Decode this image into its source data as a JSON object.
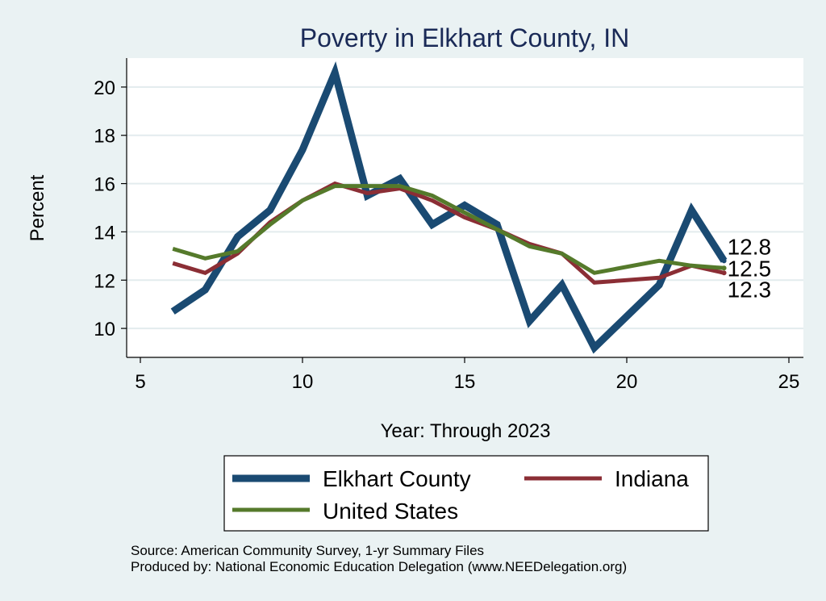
{
  "chart_data": {
    "type": "line",
    "title": "Poverty in Elkhart County, IN",
    "xlabel": "Year: Through 2023",
    "ylabel": "Percent",
    "xlim": [
      5,
      25
    ],
    "ylim": [
      8.8,
      21.2
    ],
    "xticks": [
      5,
      10,
      15,
      20,
      25
    ],
    "yticks": [
      10,
      12,
      14,
      16,
      18,
      20
    ],
    "grid": true,
    "series": [
      {
        "name": "Elkhart County",
        "color": "#1a4a72",
        "width": 9,
        "x": [
          6,
          7,
          8,
          9,
          10,
          11,
          12,
          13,
          14,
          15,
          16,
          17,
          18,
          19,
          21,
          22,
          23
        ],
        "y": [
          10.7,
          11.6,
          13.8,
          14.9,
          17.4,
          20.6,
          15.5,
          16.2,
          14.3,
          15.1,
          14.3,
          10.3,
          11.8,
          9.2,
          11.8,
          14.9,
          12.8
        ],
        "end_label": "12.8"
      },
      {
        "name": "Indiana",
        "color": "#8b2e35",
        "width": 5,
        "x": [
          6,
          7,
          8,
          9,
          10,
          11,
          12,
          13,
          14,
          15,
          16,
          17,
          18,
          19,
          21,
          22,
          23
        ],
        "y": [
          12.7,
          12.3,
          13.1,
          14.4,
          15.3,
          16.0,
          15.6,
          15.8,
          15.3,
          14.6,
          14.1,
          13.5,
          13.1,
          11.9,
          12.1,
          12.6,
          12.3
        ],
        "end_label": "12.3"
      },
      {
        "name": "United States",
        "color": "#557a2b",
        "width": 5,
        "x": [
          6,
          7,
          8,
          9,
          10,
          11,
          12,
          13,
          14,
          15,
          16,
          17,
          18,
          19,
          21,
          22,
          23
        ],
        "y": [
          13.3,
          12.9,
          13.2,
          14.3,
          15.3,
          15.9,
          15.9,
          15.9,
          15.5,
          14.8,
          14.1,
          13.4,
          13.1,
          12.3,
          12.8,
          12.6,
          12.5
        ],
        "end_label": "12.5"
      }
    ],
    "legend": {
      "placement": "bottom",
      "entries": [
        "Elkhart County",
        "Indiana",
        "United States"
      ]
    }
  },
  "notes": {
    "source": "Source: American Community Survey, 1-yr Summary Files",
    "produced": "Produced by: National Economic Education Delegation (www.NEEDelegation.org)"
  }
}
